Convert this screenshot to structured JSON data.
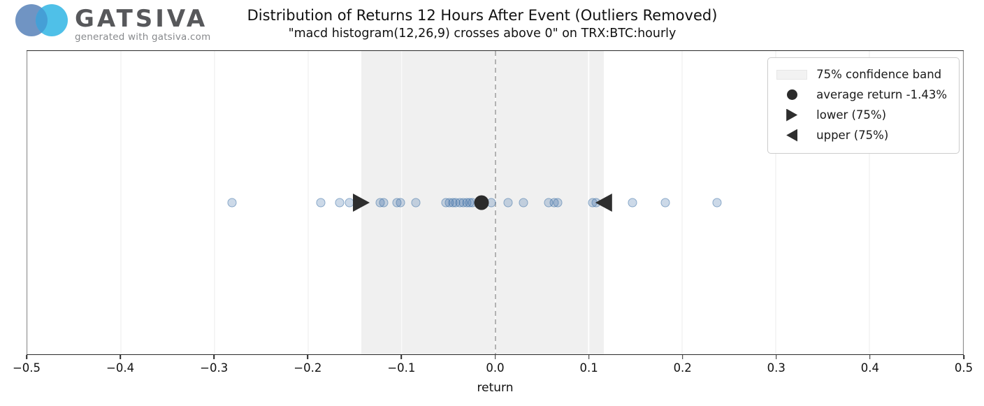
{
  "logo": {
    "brand": "GATSIVA",
    "tagline": "generated with gatsiva.com"
  },
  "header": {
    "title": "Distribution of Returns 12 Hours After Event (Outliers Removed)",
    "subtitle": "\"macd histogram(12,26,9) crosses above 0\" on TRX:BTC:hourly"
  },
  "legend": {
    "items": [
      {
        "marker": "band",
        "label": "75% confidence band"
      },
      {
        "marker": "dot",
        "label": "average return -1.43%"
      },
      {
        "marker": "tri-right",
        "label": "lower (75%)"
      },
      {
        "marker": "tri-left",
        "label": "upper (75%)"
      }
    ]
  },
  "chart_data": {
    "type": "scatter",
    "title": "Distribution of Returns 12 Hours After Event (Outliers Removed)",
    "subtitle": "\"macd histogram(12,26,9) crosses above 0\" on TRX:BTC:hourly",
    "xlabel": "return",
    "xlim": [
      -0.5,
      0.5
    ],
    "xticks": [
      -0.5,
      -0.4,
      -0.3,
      -0.2,
      -0.1,
      0.0,
      0.1,
      0.2,
      0.3,
      0.4,
      0.5
    ],
    "xtick_labels": [
      "−0.5",
      "−0.4",
      "−0.3",
      "−0.2",
      "−0.1",
      "0.0",
      "0.1",
      "0.2",
      "0.3",
      "0.4",
      "0.5"
    ],
    "grid": "vertical",
    "legend_position": "upper-right",
    "zero_line_x": 0.0,
    "average_return": -0.0143,
    "average_return_label": "-1.43%",
    "confidence_band": {
      "level": 75,
      "lower": -0.143,
      "upper": 0.116
    },
    "points_x": [
      -0.281,
      -0.186,
      -0.166,
      -0.156,
      -0.123,
      -0.119,
      -0.105,
      -0.101,
      -0.085,
      -0.053,
      -0.049,
      -0.045,
      -0.042,
      -0.038,
      -0.034,
      -0.03,
      -0.027,
      -0.024,
      -0.004,
      0.014,
      0.03,
      0.057,
      0.063,
      0.067,
      0.104,
      0.108,
      0.147,
      0.182,
      0.237
    ],
    "colors": {
      "point": "#3a6ea5",
      "band_fill": "#f0f0f0",
      "marker_dark": "#2b2b2b",
      "zero_line": "#b3b3b3",
      "gridline": "#ebebeb",
      "logo_left_circle": "#7094c3",
      "logo_right_circle": "#4fc0e8",
      "logo_overlap": "#459fd6"
    }
  }
}
